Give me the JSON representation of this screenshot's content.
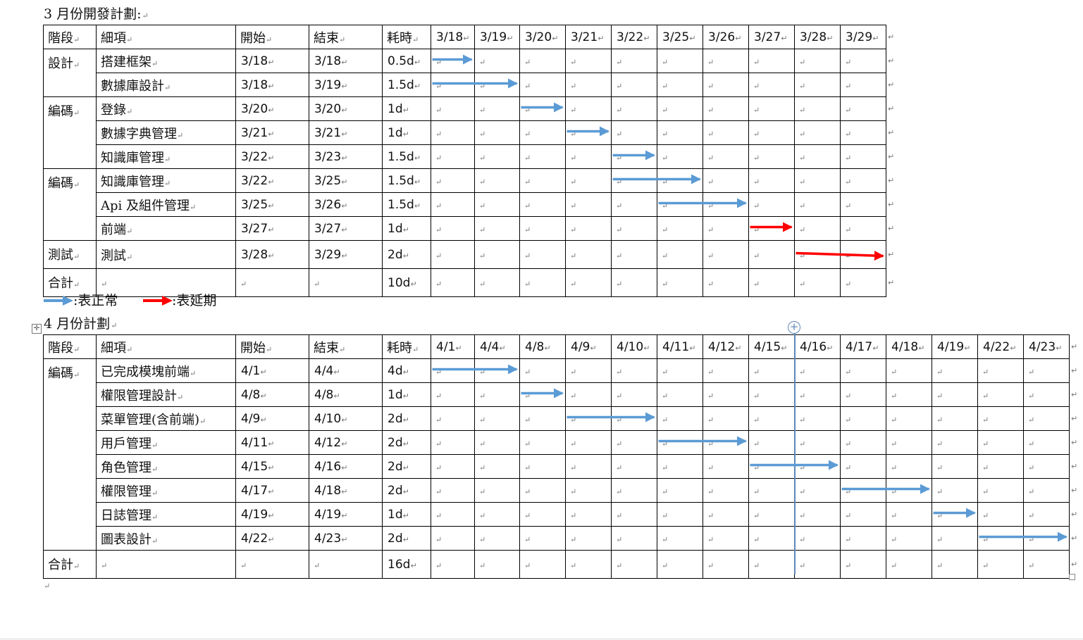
{
  "march": {
    "title": "3 月份開發計劃:",
    "headers": [
      "階段",
      "細項",
      "開始",
      "結束",
      "耗時"
    ],
    "dates": [
      "3/18",
      "3/19",
      "3/20",
      "3/21",
      "3/22",
      "3/25",
      "3/26",
      "3/27",
      "3/28",
      "3/29"
    ],
    "stages": [
      "設計",
      "編碼",
      "編碼",
      "測試",
      "合計"
    ],
    "rows": [
      {
        "item": "搭建框架",
        "start": "3/18",
        "end": "3/18",
        "dur": "0.5d"
      },
      {
        "item": "數據庫設計",
        "start": "3/18",
        "end": "3/19",
        "dur": "1.5d"
      },
      {
        "item": "登錄",
        "start": "3/20",
        "end": "3/20",
        "dur": "1d"
      },
      {
        "item": "數據字典管理",
        "start": "3/21",
        "end": "3/21",
        "dur": "1d"
      },
      {
        "item": "知識庫管理",
        "start": "3/22",
        "end": "3/23",
        "dur": "1.5d"
      },
      {
        "item": "知識庫管理",
        "start": "3/22",
        "end": "3/25",
        "dur": "1.5d"
      },
      {
        "item": "Api 及組件管理",
        "start": "3/25",
        "end": "3/26",
        "dur": "1.5d"
      },
      {
        "item": "前端",
        "start": "3/27",
        "end": "3/27",
        "dur": "1d"
      },
      {
        "item": "測試",
        "start": "3/28",
        "end": "3/29",
        "dur": "2d"
      }
    ],
    "total": "10d"
  },
  "legend": {
    "normal": ":表正常",
    "delayed": ":表延期"
  },
  "april": {
    "title": "4 月份計劃",
    "headers": [
      "階段",
      "細項",
      "開始",
      "結束",
      "耗時"
    ],
    "dates": [
      "4/1",
      "4/4",
      "4/8",
      "4/9",
      "4/10",
      "4/11",
      "4/12",
      "4/15",
      "4/16",
      "4/17",
      "4/18",
      "4/19",
      "4/22",
      "4/23"
    ],
    "stages": [
      "編碼",
      "合計"
    ],
    "rows": [
      {
        "item": "已完成模塊前端",
        "start": "4/1",
        "end": "4/4",
        "dur": "4d"
      },
      {
        "item": "權限管理設計",
        "start": "4/8",
        "end": "4/8",
        "dur": "1d"
      },
      {
        "item": "菜單管理(含前端)",
        "start": "4/9",
        "end": "4/10",
        "dur": "2d"
      },
      {
        "item": "用戶管理",
        "start": "4/11",
        "end": "4/12",
        "dur": "2d"
      },
      {
        "item": "角色管理",
        "start": "4/15",
        "end": "4/16",
        "dur": "2d"
      },
      {
        "item": "權限管理",
        "start": "4/17",
        "end": "4/18",
        "dur": "2d"
      },
      {
        "item": "日誌管理",
        "start": "4/19",
        "end": "4/19",
        "dur": "1d"
      },
      {
        "item": "圖表設計",
        "start": "4/22",
        "end": "4/23",
        "dur": "2d"
      }
    ],
    "total": "16d"
  },
  "colors": {
    "normal": "#5b9bd5",
    "delayed": "#ff0000"
  }
}
